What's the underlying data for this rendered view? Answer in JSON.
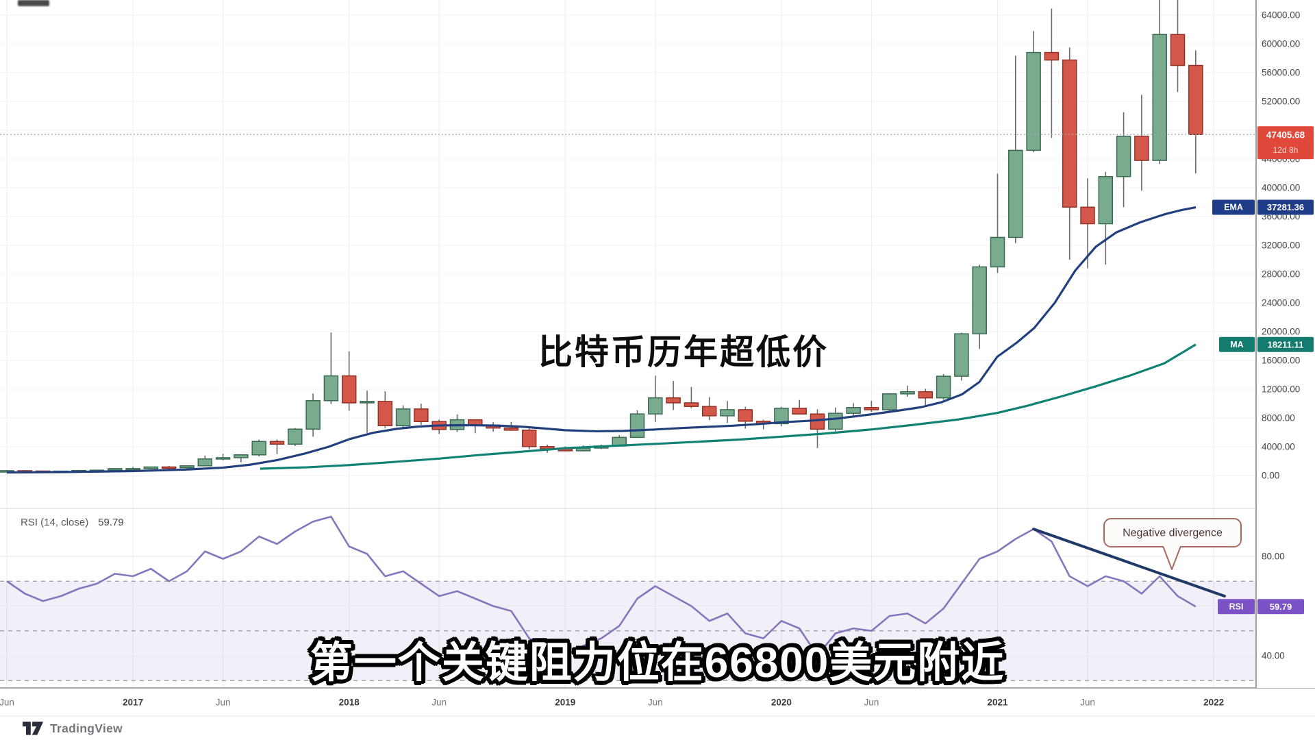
{
  "overlay": {
    "title": "比特币历年超低价",
    "subtitle": "第一个关键阻力位在66800美元附近"
  },
  "attribution": {
    "text": "TradingView"
  },
  "colors": {
    "candle_up_fill": "#79ab8e",
    "candle_up_stroke": "#396a52",
    "candle_down_fill": "#d4584a",
    "candle_down_stroke": "#943126",
    "wick": "#6a6a6a",
    "ema_line": "#22407e",
    "ma_line": "#0f8274",
    "rsi_line": "#8576bd",
    "trend_line": "#1f3a66",
    "price_badge": "#e0483b",
    "ema_badge": "#1e3c87",
    "ma_badge": "#137c6e",
    "rsi_badge": "#7a52c5",
    "grid": "#f1f1f1",
    "vgrid": "#ececec",
    "rsi_band": "rgba(123,97,190,0.10)",
    "dashed_level": "#999999",
    "axis_line": "#777777",
    "callout_border": "#a86a62",
    "callout_text": "#4d3838"
  },
  "chart_data": {
    "type": "candlestick",
    "interval": "1M",
    "price_axis": {
      "min": 0,
      "max": 64000,
      "step": 4000,
      "format_decimals": 2
    },
    "x_ticks": [
      {
        "label": "Jun",
        "i": 0,
        "year": false
      },
      {
        "label": "2017",
        "i": 7,
        "year": true
      },
      {
        "label": "Jun",
        "i": 12,
        "year": false
      },
      {
        "label": "2018",
        "i": 19,
        "year": true
      },
      {
        "label": "Jun",
        "i": 24,
        "year": false
      },
      {
        "label": "2019",
        "i": 31,
        "year": true
      },
      {
        "label": "Jun",
        "i": 36,
        "year": false
      },
      {
        "label": "2020",
        "i": 43,
        "year": true
      },
      {
        "label": "Jun",
        "i": 48,
        "year": false
      },
      {
        "label": "2021",
        "i": 55,
        "year": true
      },
      {
        "label": "Jun",
        "i": 60,
        "year": false
      },
      {
        "label": "2022",
        "i": 67,
        "year": true
      }
    ],
    "candles_ohlc": [
      [
        530,
        780,
        465,
        670
      ],
      [
        670,
        705,
        590,
        625
      ],
      [
        625,
        640,
        465,
        575
      ],
      [
        575,
        630,
        560,
        610
      ],
      [
        610,
        740,
        595,
        700
      ],
      [
        700,
        755,
        665,
        745
      ],
      [
        745,
        980,
        740,
        965
      ],
      [
        965,
        1190,
        750,
        965
      ],
      [
        965,
        1220,
        920,
        1190
      ],
      [
        1190,
        1330,
        890,
        1080
      ],
      [
        1080,
        1360,
        1060,
        1350
      ],
      [
        1350,
        2780,
        1340,
        2300
      ],
      [
        2300,
        3000,
        2100,
        2480
      ],
      [
        2480,
        2930,
        1830,
        2875
      ],
      [
        2875,
        4980,
        2650,
        4735
      ],
      [
        4735,
        5000,
        2970,
        4360
      ],
      [
        4360,
        6600,
        4110,
        6450
      ],
      [
        6450,
        11400,
        5400,
        10400
      ],
      [
        10400,
        19875,
        9950,
        13850
      ],
      [
        13850,
        17250,
        9000,
        10100
      ],
      [
        10100,
        11790,
        5920,
        10300
      ],
      [
        10300,
        11700,
        6600,
        6925
      ],
      [
        6925,
        9760,
        6430,
        9250
      ],
      [
        9250,
        9990,
        7040,
        7500
      ],
      [
        7500,
        7780,
        5780,
        6400
      ],
      [
        6400,
        8500,
        6070,
        7750
      ],
      [
        7750,
        7770,
        5880,
        7015
      ],
      [
        7015,
        7410,
        6100,
        6600
      ],
      [
        6600,
        7450,
        6200,
        6300
      ],
      [
        6300,
        6550,
        3650,
        4025
      ],
      [
        4025,
        4300,
        3150,
        3700
      ],
      [
        3700,
        4050,
        3350,
        3435
      ],
      [
        3435,
        4190,
        3350,
        3815
      ],
      [
        3815,
        4290,
        3665,
        4100
      ],
      [
        4100,
        5600,
        4050,
        5300
      ],
      [
        5300,
        9070,
        5250,
        8560
      ],
      [
        8560,
        13870,
        7450,
        10800
      ],
      [
        10800,
        13130,
        9090,
        10100
      ],
      [
        10100,
        12320,
        9350,
        9600
      ],
      [
        9600,
        10900,
        7700,
        8300
      ],
      [
        8300,
        10350,
        7300,
        9150
      ],
      [
        9150,
        9550,
        6520,
        7550
      ],
      [
        7550,
        7750,
        6430,
        7200
      ],
      [
        7200,
        9550,
        6850,
        9350
      ],
      [
        9350,
        10500,
        8520,
        8550
      ],
      [
        8550,
        9200,
        3800,
        6440
      ],
      [
        6440,
        9450,
        6150,
        8650
      ],
      [
        8650,
        10050,
        8100,
        9450
      ],
      [
        9450,
        10380,
        8830,
        9140
      ],
      [
        9140,
        11450,
        8900,
        11350
      ],
      [
        11350,
        12480,
        10950,
        11650
      ],
      [
        11650,
        12050,
        9800,
        10790
      ],
      [
        10790,
        14100,
        10520,
        13800
      ],
      [
        13800,
        19860,
        13200,
        19700
      ],
      [
        19700,
        29300,
        17600,
        29000
      ],
      [
        29000,
        41950,
        28150,
        33100
      ],
      [
        33100,
        58350,
        32300,
        45200
      ],
      [
        45200,
        61800,
        44950,
        58800
      ],
      [
        58800,
        64900,
        46930,
        57750
      ],
      [
        57750,
        59500,
        30000,
        37300
      ],
      [
        37300,
        41300,
        28800,
        35000
      ],
      [
        35000,
        42200,
        29300,
        41550
      ],
      [
        41550,
        50500,
        37300,
        47150
      ],
      [
        47150,
        52920,
        39600,
        43800
      ],
      [
        43800,
        67000,
        43300,
        61300
      ],
      [
        61300,
        69000,
        53300,
        57000
      ],
      [
        57000,
        59100,
        42000,
        47405.68
      ]
    ],
    "price_line": {
      "value": "47405.68",
      "countdown": "12d 8h"
    },
    "ema": {
      "label": "EMA",
      "value": "37281.36",
      "points": [
        [
          10,
          430
        ],
        [
          100,
          490
        ],
        [
          194,
          620
        ],
        [
          270,
          820
        ],
        [
          326,
          1100
        ],
        [
          365,
          1500
        ],
        [
          405,
          2150
        ],
        [
          445,
          3050
        ],
        [
          480,
          4000
        ],
        [
          510,
          5050
        ],
        [
          545,
          5950
        ],
        [
          580,
          6500
        ],
        [
          610,
          6800
        ],
        [
          641,
          6950
        ],
        [
          680,
          7000
        ],
        [
          720,
          6950
        ],
        [
          760,
          6800
        ],
        [
          800,
          6500
        ],
        [
          825,
          6300
        ],
        [
          870,
          6150
        ],
        [
          910,
          6200
        ],
        [
          957,
          6400
        ],
        [
          995,
          6600
        ],
        [
          1030,
          6750
        ],
        [
          1065,
          6900
        ],
        [
          1100,
          7100
        ],
        [
          1141,
          7400
        ],
        [
          1180,
          7600
        ],
        [
          1220,
          7900
        ],
        [
          1272,
          8500
        ],
        [
          1310,
          9000
        ],
        [
          1345,
          9500
        ],
        [
          1375,
          10200
        ],
        [
          1405,
          11300
        ],
        [
          1430,
          13000
        ],
        [
          1456,
          16500
        ],
        [
          1485,
          18500
        ],
        [
          1510,
          20500
        ],
        [
          1540,
          24000
        ],
        [
          1570,
          28500
        ],
        [
          1600,
          31800
        ],
        [
          1630,
          33800
        ],
        [
          1665,
          35200
        ],
        [
          1700,
          36300
        ],
        [
          1725,
          36900
        ],
        [
          1746,
          37281
        ]
      ]
    },
    "ma": {
      "label": "MA",
      "value": "18211.11",
      "points": [
        [
          380,
          950
        ],
        [
          450,
          1150
        ],
        [
          510,
          1450
        ],
        [
          570,
          1850
        ],
        [
          641,
          2350
        ],
        [
          700,
          2850
        ],
        [
          760,
          3300
        ],
        [
          825,
          3800
        ],
        [
          890,
          4100
        ],
        [
          957,
          4400
        ],
        [
          1020,
          4700
        ],
        [
          1080,
          5000
        ],
        [
          1141,
          5400
        ],
        [
          1200,
          5800
        ],
        [
          1272,
          6400
        ],
        [
          1330,
          7000
        ],
        [
          1400,
          7800
        ],
        [
          1456,
          8700
        ],
        [
          1500,
          9700
        ],
        [
          1550,
          11000
        ],
        [
          1600,
          12400
        ],
        [
          1650,
          13900
        ],
        [
          1700,
          15600
        ],
        [
          1746,
          18211
        ]
      ]
    },
    "rsi": {
      "label": "RSI (14, close)",
      "short_label": "RSI",
      "value": "59.79",
      "axis_labels": [
        80,
        40
      ],
      "solid_levels": [
        80,
        60,
        40
      ],
      "dashed_levels": [
        70,
        50,
        30
      ],
      "values": [
        70,
        65,
        62,
        64,
        67,
        69,
        73,
        72,
        75,
        70,
        74,
        82,
        79,
        82,
        88,
        85,
        90,
        94,
        96,
        84,
        81,
        72,
        74,
        69,
        64,
        66,
        63,
        60,
        58,
        47,
        43,
        40,
        44,
        47,
        52,
        63,
        68,
        64,
        60,
        54,
        57,
        49,
        47,
        54,
        51,
        40,
        49,
        51,
        50,
        56,
        57,
        53,
        59,
        69,
        79,
        82,
        87,
        91,
        86,
        72,
        68,
        72,
        70,
        65,
        72,
        64,
        59.79
      ]
    },
    "annotation": {
      "text": "Negative divergence",
      "trend_line_rsi": [
        [
          1509,
          91
        ],
        [
          1788,
          64
        ]
      ]
    }
  }
}
